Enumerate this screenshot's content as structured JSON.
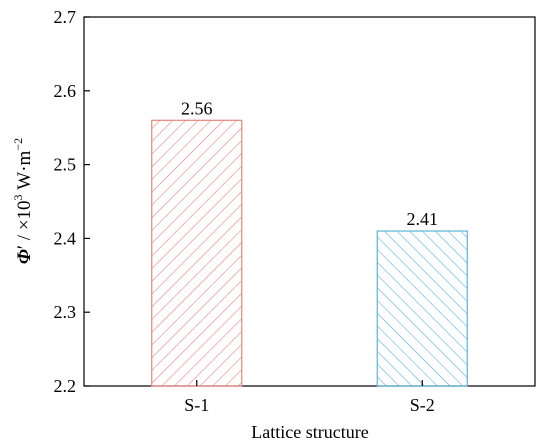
{
  "chart_data": {
    "type": "bar",
    "categories": [
      "S-1",
      "S-2"
    ],
    "values": [
      2.56,
      2.41
    ],
    "data_labels": [
      "2.56",
      "2.41"
    ],
    "ylim": [
      2.2,
      2.7
    ],
    "yticks": [
      2.2,
      2.3,
      2.4,
      2.5,
      2.6,
      2.7
    ],
    "ytick_labels": [
      "2.2",
      "2.3",
      "2.4",
      "2.5",
      "2.6",
      "2.7"
    ],
    "xlabel": "Lattice structure",
    "ylabel": {
      "symbol": "Φ",
      "prime": "′",
      "unit_prefix": " / ×10",
      "exp": "3",
      "unit": " W·m",
      "unit_exp": "−2"
    },
    "colors": {
      "S-1": "#e8867f",
      "S-2": "#5ab4dc"
    },
    "fill_pattern": [
      "hatch-forward",
      "hatch-back"
    ],
    "grid": false,
    "legend": "none"
  }
}
